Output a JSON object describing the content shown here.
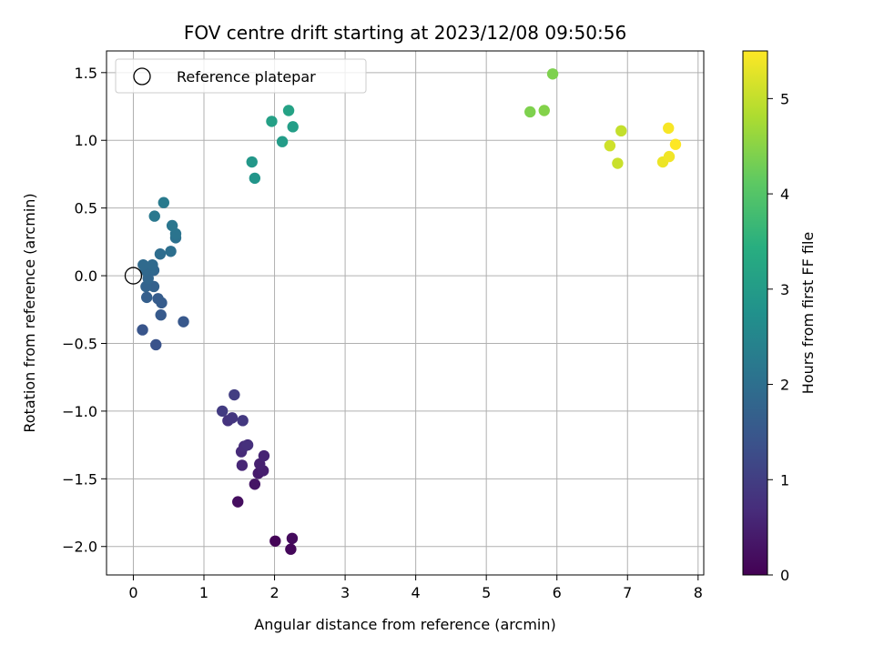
{
  "chart_data": {
    "type": "scatter",
    "title": "FOV centre drift starting at 2023/12/08 09:50:56",
    "xlabel": "Angular distance from reference (arcmin)",
    "ylabel": "Rotation from reference (arcmin)",
    "xlim": [
      -0.38,
      8.08
    ],
    "ylim": [
      -2.21,
      1.66
    ],
    "x_ticks": [
      0,
      1,
      2,
      3,
      4,
      5,
      6,
      7,
      8
    ],
    "y_ticks": [
      -2.0,
      -1.5,
      -1.0,
      -0.5,
      0.0,
      0.5,
      1.0,
      1.5
    ],
    "x_tick_labels": [
      "0",
      "1",
      "2",
      "3",
      "4",
      "5",
      "6",
      "7",
      "8"
    ],
    "y_tick_labels": [
      "−2.0",
      "−1.5",
      "−1.0",
      "−0.5",
      "0.0",
      "0.5",
      "1.0",
      "1.5"
    ],
    "grid": true,
    "colormap": "viridis",
    "colorbar": {
      "label": "Hours from first FF file",
      "range": [
        0,
        5.5
      ],
      "ticks": [
        0,
        1,
        2,
        3,
        4,
        5
      ],
      "tick_labels": [
        "0",
        "1",
        "2",
        "3",
        "4",
        "5"
      ]
    },
    "legend": {
      "placement": "upper-left",
      "entries": [
        {
          "label": "Reference platepar",
          "marker": "open-circle"
        }
      ]
    },
    "reference_point": {
      "x": 0.0,
      "y": 0.0
    },
    "points": [
      {
        "x": 2.01,
        "y": -1.96,
        "hours": 0.05
      },
      {
        "x": 2.23,
        "y": -2.02,
        "hours": 0.1
      },
      {
        "x": 2.25,
        "y": -1.94,
        "hours": 0.15
      },
      {
        "x": 1.48,
        "y": -1.67,
        "hours": 0.2
      },
      {
        "x": 1.72,
        "y": -1.54,
        "hours": 0.3
      },
      {
        "x": 1.77,
        "y": -1.46,
        "hours": 0.4
      },
      {
        "x": 1.84,
        "y": -1.44,
        "hours": 0.45
      },
      {
        "x": 1.79,
        "y": -1.39,
        "hours": 0.5
      },
      {
        "x": 1.85,
        "y": -1.33,
        "hours": 0.55
      },
      {
        "x": 1.54,
        "y": -1.4,
        "hours": 0.6
      },
      {
        "x": 1.53,
        "y": -1.3,
        "hours": 0.65
      },
      {
        "x": 1.57,
        "y": -1.26,
        "hours": 0.7
      },
      {
        "x": 1.62,
        "y": -1.25,
        "hours": 0.75
      },
      {
        "x": 1.34,
        "y": -1.07,
        "hours": 0.8
      },
      {
        "x": 1.4,
        "y": -1.05,
        "hours": 0.85
      },
      {
        "x": 1.55,
        "y": -1.07,
        "hours": 0.9
      },
      {
        "x": 1.26,
        "y": -1.0,
        "hours": 0.95
      },
      {
        "x": 1.43,
        "y": -0.88,
        "hours": 1.0
      },
      {
        "x": 0.32,
        "y": -0.51,
        "hours": 1.4
      },
      {
        "x": 0.13,
        "y": -0.4,
        "hours": 1.45
      },
      {
        "x": 0.71,
        "y": -0.34,
        "hours": 1.5
      },
      {
        "x": 0.39,
        "y": -0.29,
        "hours": 1.55
      },
      {
        "x": 0.4,
        "y": -0.2,
        "hours": 1.6
      },
      {
        "x": 0.35,
        "y": -0.17,
        "hours": 1.6
      },
      {
        "x": 0.19,
        "y": -0.16,
        "hours": 1.65
      },
      {
        "x": 0.29,
        "y": -0.08,
        "hours": 1.7
      },
      {
        "x": 0.18,
        "y": -0.08,
        "hours": 1.75
      },
      {
        "x": 0.21,
        "y": -0.02,
        "hours": 1.8
      },
      {
        "x": 0.29,
        "y": 0.04,
        "hours": 1.8
      },
      {
        "x": 0.25,
        "y": 0.05,
        "hours": 1.85
      },
      {
        "x": 0.17,
        "y": 0.04,
        "hours": 1.85
      },
      {
        "x": 0.27,
        "y": 0.08,
        "hours": 1.9
      },
      {
        "x": 0.14,
        "y": 0.08,
        "hours": 1.9
      },
      {
        "x": 0.38,
        "y": 0.16,
        "hours": 1.95
      },
      {
        "x": 0.53,
        "y": 0.18,
        "hours": 2.0
      },
      {
        "x": 0.6,
        "y": 0.28,
        "hours": 2.05
      },
      {
        "x": 0.6,
        "y": 0.31,
        "hours": 2.1
      },
      {
        "x": 0.55,
        "y": 0.37,
        "hours": 2.15
      },
      {
        "x": 0.3,
        "y": 0.44,
        "hours": 2.2
      },
      {
        "x": 0.43,
        "y": 0.54,
        "hours": 2.25
      },
      {
        "x": 1.72,
        "y": 0.72,
        "hours": 2.85
      },
      {
        "x": 1.68,
        "y": 0.84,
        "hours": 2.9
      },
      {
        "x": 2.11,
        "y": 0.99,
        "hours": 3.0
      },
      {
        "x": 2.26,
        "y": 1.1,
        "hours": 3.05
      },
      {
        "x": 1.96,
        "y": 1.14,
        "hours": 3.1
      },
      {
        "x": 2.2,
        "y": 1.22,
        "hours": 3.15
      },
      {
        "x": 5.62,
        "y": 1.21,
        "hours": 4.4
      },
      {
        "x": 5.82,
        "y": 1.22,
        "hours": 4.45
      },
      {
        "x": 5.94,
        "y": 1.49,
        "hours": 4.4
      },
      {
        "x": 6.75,
        "y": 0.96,
        "hours": 5.1
      },
      {
        "x": 6.86,
        "y": 0.83,
        "hours": 5.05
      },
      {
        "x": 6.91,
        "y": 1.07,
        "hours": 5.0
      },
      {
        "x": 7.5,
        "y": 0.84,
        "hours": 5.35
      },
      {
        "x": 7.59,
        "y": 0.88,
        "hours": 5.4
      },
      {
        "x": 7.58,
        "y": 1.09,
        "hours": 5.45
      },
      {
        "x": 7.68,
        "y": 0.97,
        "hours": 5.5
      }
    ]
  }
}
